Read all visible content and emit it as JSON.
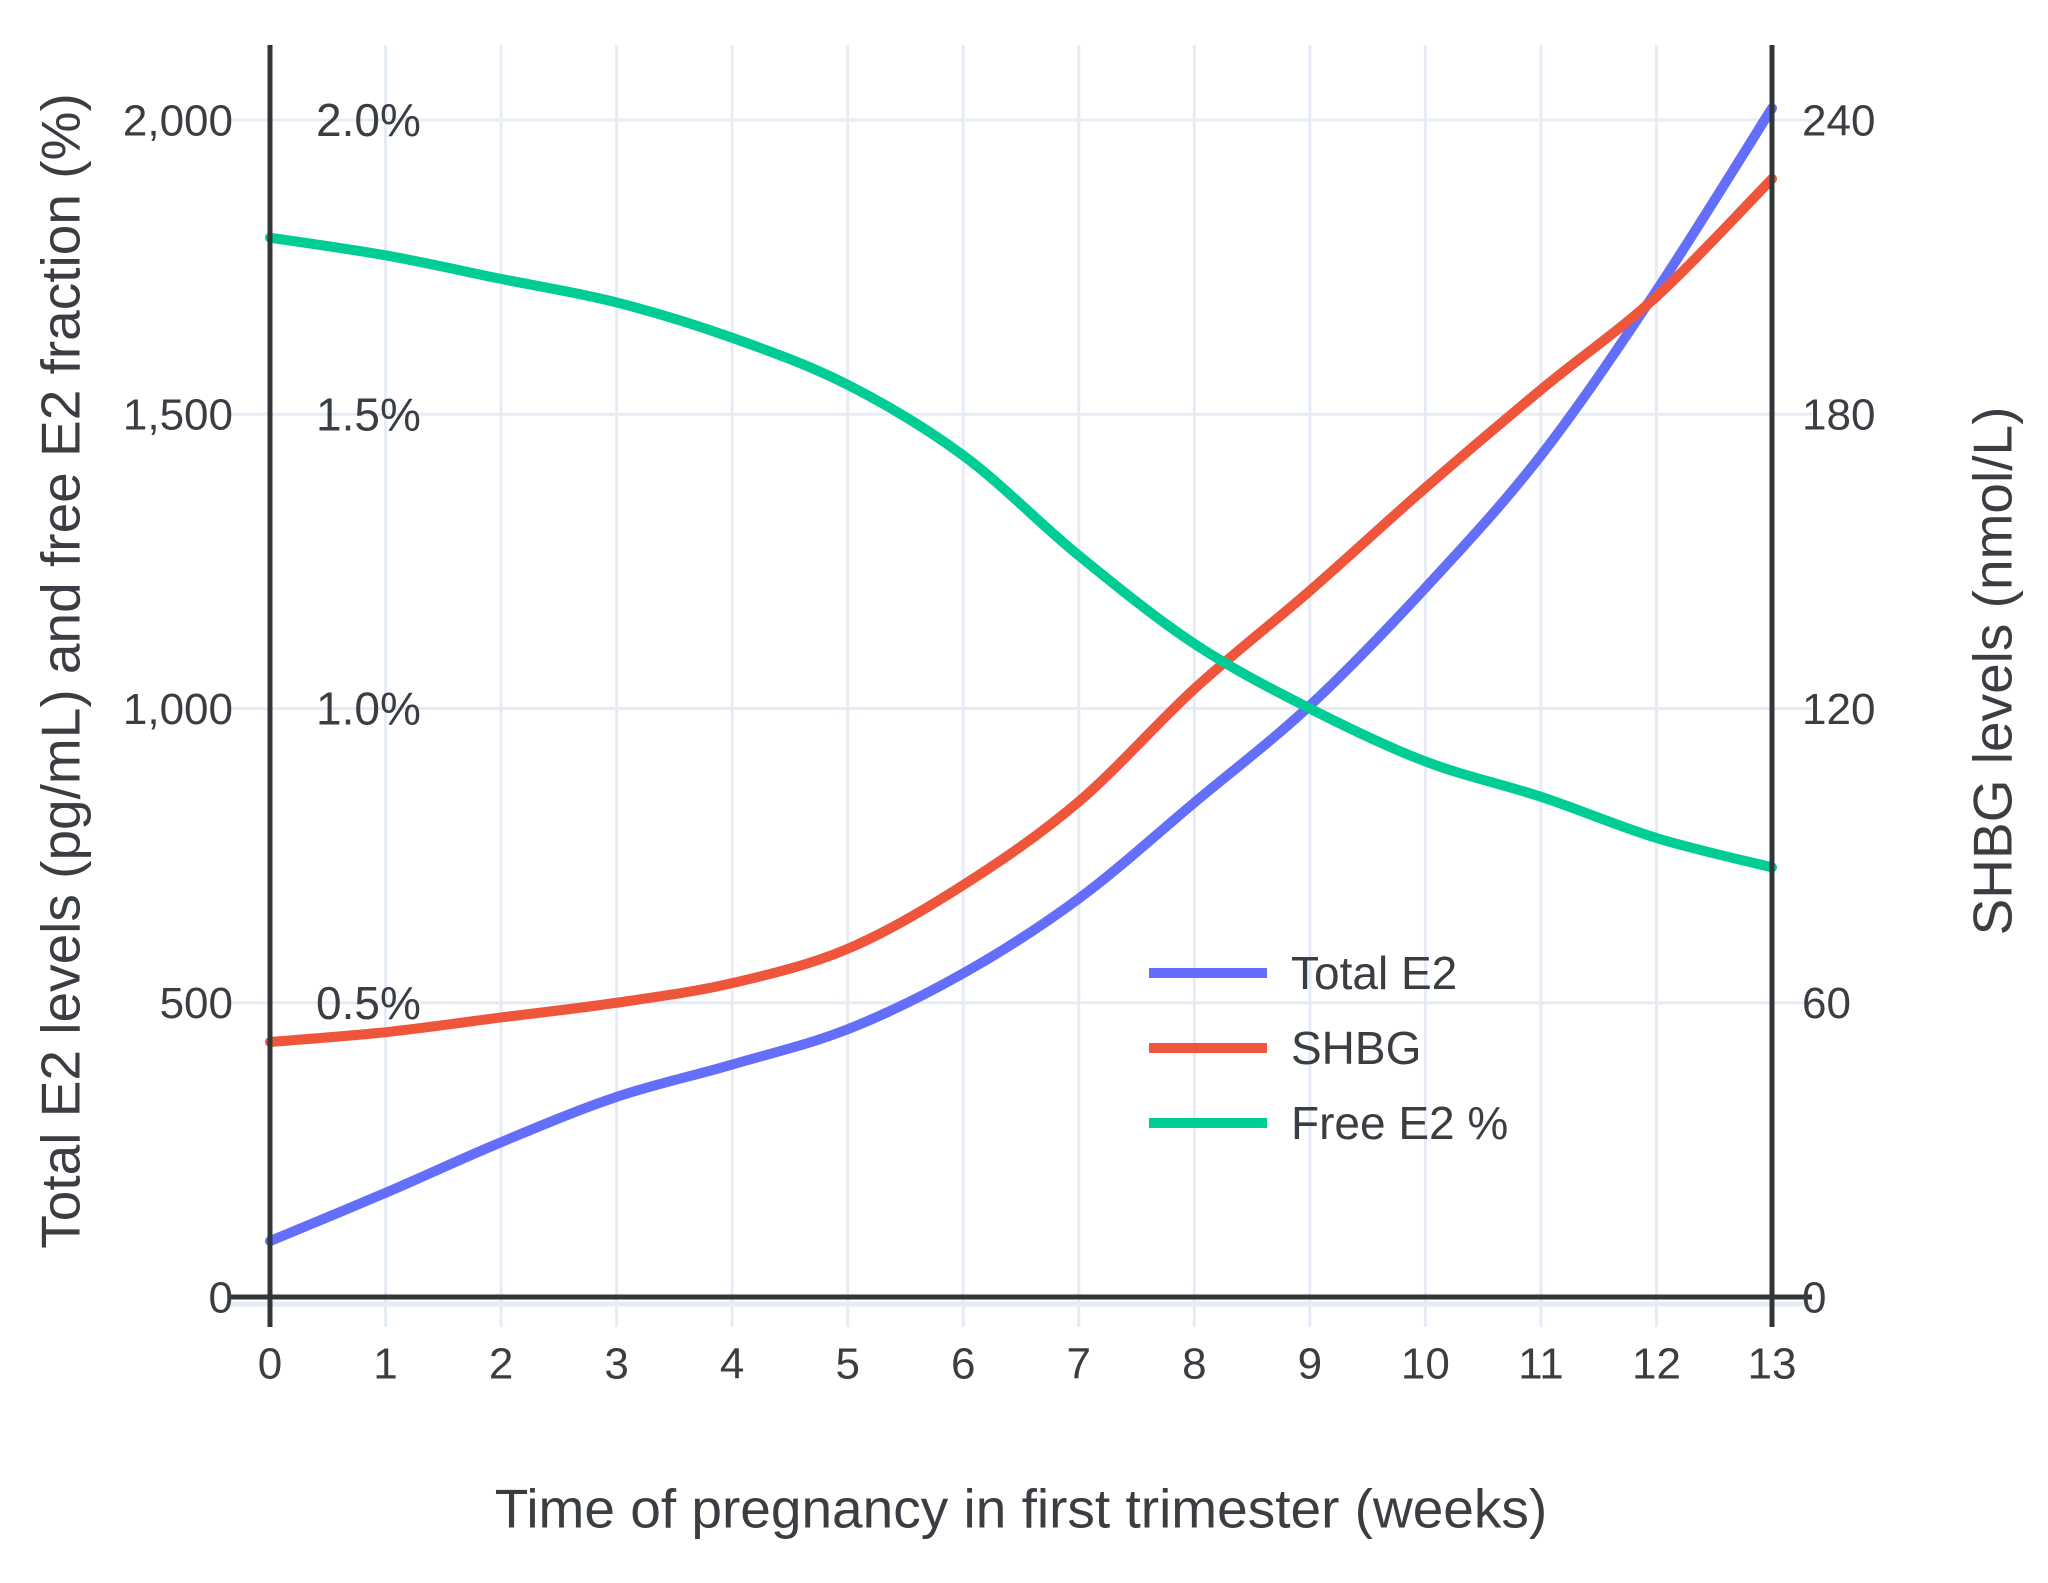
{
  "figure": {
    "background": "#FFFFFF",
    "text_color": "#3A3D42",
    "grid_color": "#E6EBF6",
    "axis_line_color": "#333639"
  },
  "chart_data": {
    "type": "line",
    "title": "",
    "xlabel": "Time of pregnancy in first trimester (weeks)",
    "ylabel_left": "Total E2 levels (pg/mL) and free E2 fraction (%)",
    "ylabel_right": "SHBG levels (nmol/L)",
    "xlim": [
      0,
      13
    ],
    "ylim_left": [
      0,
      2130
    ],
    "ylim_right": [
      0,
      255.6
    ],
    "grid": true,
    "legend_position": "middle-right",
    "x": [
      0,
      1,
      2,
      3,
      4,
      5,
      6,
      7,
      8,
      9,
      10,
      11,
      12,
      13
    ],
    "x_tick_labels": [
      "0",
      "1",
      "2",
      "3",
      "4",
      "5",
      "6",
      "7",
      "8",
      "9",
      "10",
      "11",
      "12",
      "13"
    ],
    "y_left_ticks": [
      {
        "value": 0,
        "label": "0"
      },
      {
        "value": 500,
        "label": "500"
      },
      {
        "value": 1000,
        "label": "1,000"
      },
      {
        "value": 1500,
        "label": "1,500"
      },
      {
        "value": 2000,
        "label": "2,000"
      }
    ],
    "y_right_ticks": [
      {
        "value": 0,
        "label": "0"
      },
      {
        "value": 60,
        "label": "60"
      },
      {
        "value": 120,
        "label": "120"
      },
      {
        "value": 180,
        "label": "180"
      },
      {
        "value": 240,
        "label": "240"
      }
    ],
    "pct_annotations": [
      {
        "value": 500,
        "label": "0.5%"
      },
      {
        "value": 1000,
        "label": "1.0%"
      },
      {
        "value": 1500,
        "label": "1.5%"
      },
      {
        "value": 2000,
        "label": "2.0%"
      }
    ],
    "series": [
      {
        "name": "Total E2",
        "axis": "left",
        "unit": "pg/mL",
        "color": "#636EFA",
        "values": [
          95,
          177,
          263,
          340,
          395,
          455,
          550,
          677,
          840,
          1005,
          1205,
          1430,
          1710,
          2020
        ]
      },
      {
        "name": "SHBG",
        "axis": "right",
        "unit": "nmol/L",
        "color": "#EF553B",
        "values": [
          52,
          54,
          57,
          60,
          64,
          71,
          84,
          101,
          124,
          144,
          165,
          185,
          204,
          228
        ]
      },
      {
        "name": "Free E2 %",
        "axis": "left_pct",
        "unit": "%",
        "color": "#00CC96",
        "values": [
          1.8,
          1.77,
          1.73,
          1.69,
          1.63,
          1.55,
          1.43,
          1.26,
          1.11,
          1.0,
          0.91,
          0.85,
          0.78,
          0.73
        ]
      }
    ],
    "legend": [
      "Total E2",
      "SHBG",
      "Free E2 %"
    ]
  }
}
